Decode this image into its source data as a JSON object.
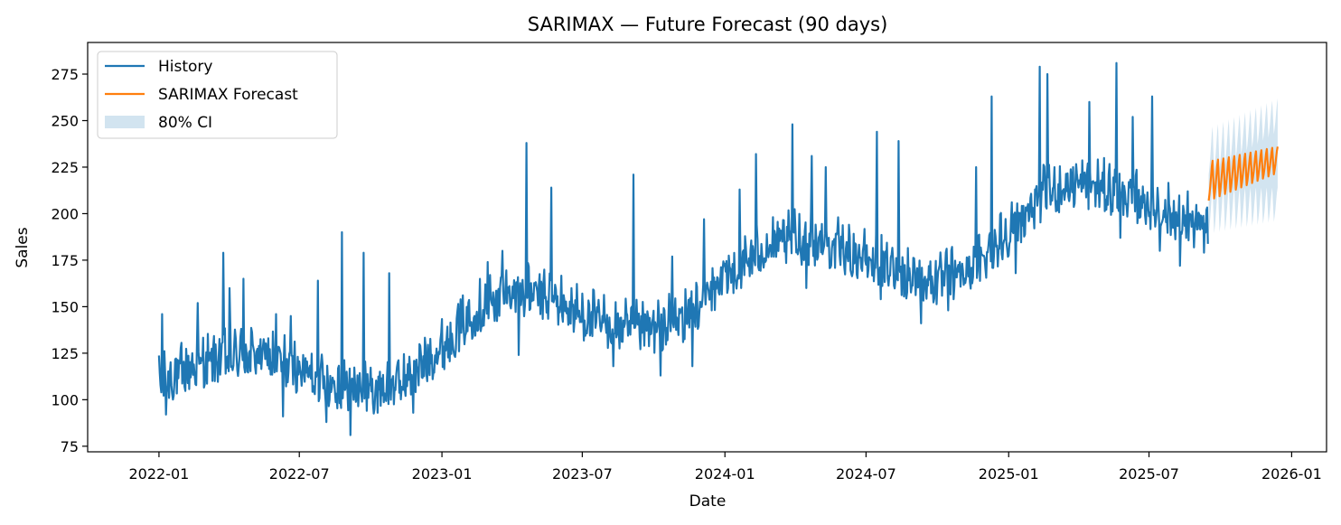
{
  "chart_data": {
    "type": "line",
    "title": "SARIMAX — Future Forecast (90 days)",
    "xlabel": "Date",
    "ylabel": "Sales",
    "xlim": [
      "2021-10-01",
      "2026-02-15"
    ],
    "ylim": [
      72,
      292
    ],
    "x_ticks": [
      "2022-01",
      "2022-07",
      "2023-01",
      "2023-07",
      "2024-01",
      "2024-07",
      "2025-01",
      "2025-07",
      "2026-01"
    ],
    "y_ticks": [
      75,
      100,
      125,
      150,
      175,
      200,
      225,
      250,
      275
    ],
    "grid": false,
    "legend_position": "top-left",
    "legend": [
      "History",
      "SARIMAX Forecast",
      "80% CI"
    ],
    "colors": {
      "history": "#1f77b4",
      "forecast": "#ff7f0e",
      "ci": "#1f77b4"
    },
    "history": {
      "name": "History",
      "start": "2022-01-01",
      "end": "2025-09-15",
      "step_days": 1,
      "trend": [
        [
          "2022-01-01",
          108
        ],
        [
          "2022-02-15",
          118
        ],
        [
          "2022-04-01",
          123
        ],
        [
          "2022-05-15",
          124
        ],
        [
          "2022-07-01",
          116
        ],
        [
          "2022-08-15",
          108
        ],
        [
          "2022-10-01",
          105
        ],
        [
          "2022-11-15",
          110
        ],
        [
          "2023-01-01",
          128
        ],
        [
          "2023-02-15",
          148
        ],
        [
          "2023-04-01",
          158
        ],
        [
          "2023-05-15",
          155
        ],
        [
          "2023-07-01",
          145
        ],
        [
          "2023-08-15",
          138
        ],
        [
          "2023-10-01",
          137
        ],
        [
          "2023-11-15",
          145
        ],
        [
          "2024-01-01",
          165
        ],
        [
          "2024-02-15",
          180
        ],
        [
          "2024-04-01",
          186
        ],
        [
          "2024-05-15",
          183
        ],
        [
          "2024-07-01",
          175
        ],
        [
          "2024-08-15",
          168
        ],
        [
          "2024-10-01",
          163
        ],
        [
          "2024-11-15",
          170
        ],
        [
          "2025-01-01",
          190
        ],
        [
          "2025-02-15",
          210
        ],
        [
          "2025-04-01",
          216
        ],
        [
          "2025-05-15",
          212
        ],
        [
          "2025-07-01",
          205
        ],
        [
          "2025-08-15",
          196
        ],
        [
          "2025-09-15",
          190
        ]
      ],
      "spikes": [
        [
          "2022-01-05",
          146
        ],
        [
          "2022-02-20",
          152
        ],
        [
          "2022-03-25",
          179
        ],
        [
          "2022-04-02",
          160
        ],
        [
          "2022-04-20",
          165
        ],
        [
          "2022-06-01",
          146
        ],
        [
          "2022-06-20",
          145
        ],
        [
          "2022-07-25",
          164
        ],
        [
          "2022-08-25",
          190
        ],
        [
          "2022-09-22",
          179
        ],
        [
          "2022-10-25",
          168
        ],
        [
          "2023-01-25",
          154
        ],
        [
          "2023-03-01",
          174
        ],
        [
          "2023-03-20",
          180
        ],
        [
          "2023-04-20",
          238
        ],
        [
          "2023-05-22",
          214
        ],
        [
          "2023-09-05",
          221
        ],
        [
          "2023-10-25",
          177
        ],
        [
          "2023-12-05",
          197
        ],
        [
          "2024-01-20",
          213
        ],
        [
          "2024-02-10",
          232
        ],
        [
          "2024-03-28",
          248
        ],
        [
          "2024-04-22",
          231
        ],
        [
          "2024-05-10",
          225
        ],
        [
          "2024-07-15",
          244
        ],
        [
          "2024-08-12",
          239
        ],
        [
          "2024-11-20",
          225
        ],
        [
          "2024-12-10",
          263
        ],
        [
          "2025-02-10",
          279
        ],
        [
          "2025-02-20",
          275
        ],
        [
          "2025-03-25",
          225
        ],
        [
          "2025-04-15",
          260
        ],
        [
          "2025-05-20",
          281
        ],
        [
          "2025-06-10",
          252
        ],
        [
          "2025-07-05",
          263
        ],
        [
          "2025-08-20",
          212
        ]
      ],
      "dips": [
        [
          "2022-01-10",
          92
        ],
        [
          "2022-06-10",
          91
        ],
        [
          "2022-08-05",
          88
        ],
        [
          "2022-09-05",
          81
        ],
        [
          "2022-10-10",
          93
        ],
        [
          "2022-11-25",
          93
        ],
        [
          "2023-04-10",
          124
        ],
        [
          "2023-08-10",
          118
        ],
        [
          "2023-10-10",
          113
        ],
        [
          "2023-11-20",
          118
        ],
        [
          "2024-04-15",
          160
        ],
        [
          "2024-07-20",
          154
        ],
        [
          "2024-09-10",
          141
        ],
        [
          "2024-10-15",
          148
        ],
        [
          "2025-01-10",
          168
        ],
        [
          "2025-05-25",
          187
        ],
        [
          "2025-07-15",
          180
        ],
        [
          "2025-08-10",
          172
        ]
      ]
    },
    "forecast": {
      "name": "SARIMAX Forecast",
      "start": "2025-09-16",
      "end": "2025-12-14",
      "days": 90,
      "weekly_low": [
        207,
        222
      ],
      "weekly_high": [
        228,
        236
      ]
    },
    "ci": {
      "name": "80% CI",
      "start": "2025-09-16",
      "end": "2025-12-14",
      "lower_range": [
        194,
        208
      ],
      "upper_range": [
        236,
        255
      ]
    }
  }
}
